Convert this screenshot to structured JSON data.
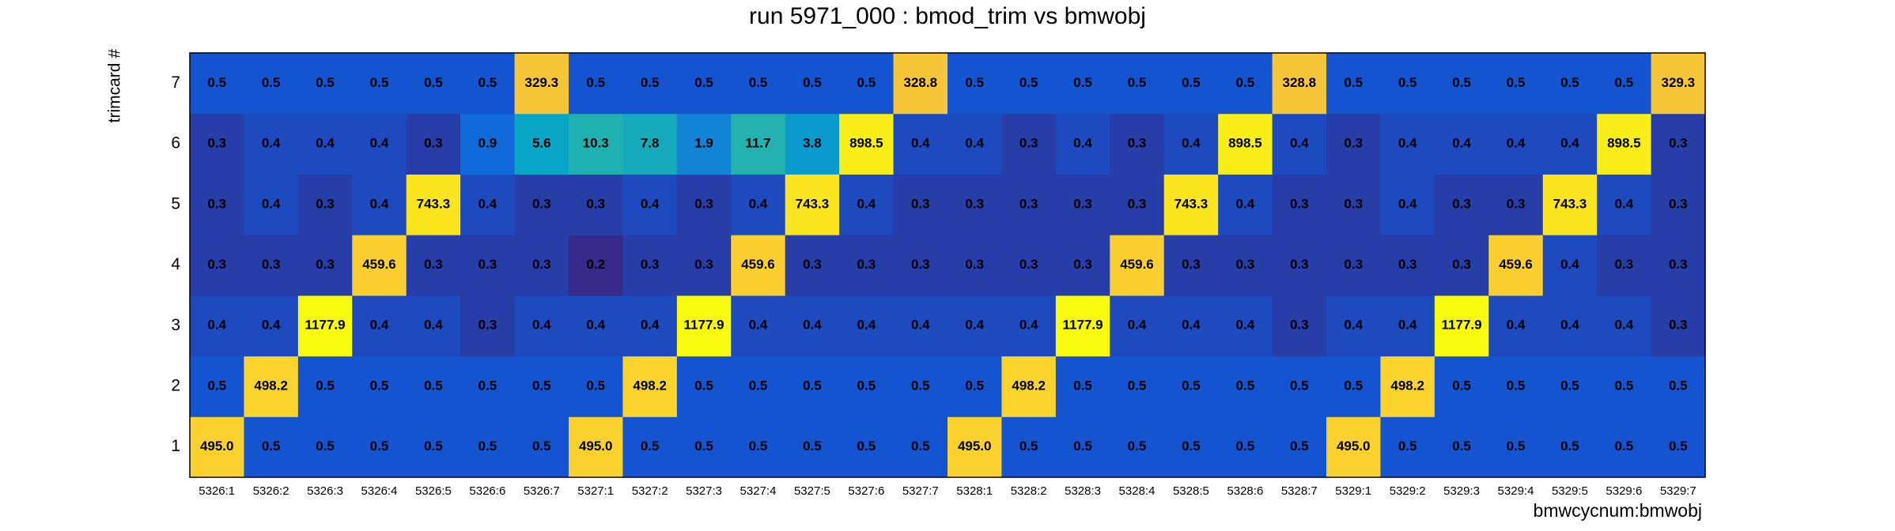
{
  "chart_data": {
    "type": "heatmap",
    "title": "run 5971_000 : bmod_trim vs bmwobj",
    "x_label": "bmwcycnum:bmwobj",
    "y_label": "trimcard #",
    "categories": [
      "5326:1",
      "5326:2",
      "5326:3",
      "5326:4",
      "5326:5",
      "5326:6",
      "5326:7",
      "5327:1",
      "5327:2",
      "5327:3",
      "5327:4",
      "5327:5",
      "5327:6",
      "5327:7",
      "5328:1",
      "5328:2",
      "5328:3",
      "5328:4",
      "5328:5",
      "5328:6",
      "5328:7",
      "5329:1",
      "5329:2",
      "5329:3",
      "5329:4",
      "5329:5",
      "5329:6",
      "5329:7"
    ],
    "y_categories": [
      "1",
      "2",
      "3",
      "4",
      "5",
      "6",
      "7"
    ],
    "z": [
      [
        495.0,
        0.5,
        0.5,
        0.5,
        0.5,
        0.5,
        0.5,
        495.0,
        0.5,
        0.5,
        0.5,
        0.5,
        0.5,
        0.5,
        495.0,
        0.5,
        0.5,
        0.5,
        0.5,
        0.5,
        0.5,
        495.0,
        0.5,
        0.5,
        0.5,
        0.5,
        0.5,
        0.5
      ],
      [
        0.5,
        498.2,
        0.5,
        0.5,
        0.5,
        0.5,
        0.5,
        0.5,
        498.2,
        0.5,
        0.5,
        0.5,
        0.5,
        0.5,
        0.5,
        498.2,
        0.5,
        0.5,
        0.5,
        0.5,
        0.5,
        0.5,
        498.2,
        0.5,
        0.5,
        0.5,
        0.5,
        0.5
      ],
      [
        0.4,
        0.4,
        1177.9,
        0.4,
        0.4,
        0.3,
        0.4,
        0.4,
        0.4,
        1177.9,
        0.4,
        0.4,
        0.4,
        0.4,
        0.4,
        0.4,
        1177.9,
        0.4,
        0.4,
        0.4,
        0.3,
        0.4,
        0.4,
        1177.9,
        0.4,
        0.4,
        0.4,
        0.3
      ],
      [
        0.3,
        0.3,
        0.3,
        459.6,
        0.3,
        0.3,
        0.3,
        0.2,
        0.3,
        0.3,
        459.6,
        0.3,
        0.3,
        0.3,
        0.3,
        0.3,
        0.3,
        459.6,
        0.3,
        0.3,
        0.3,
        0.3,
        0.3,
        0.3,
        459.6,
        0.4,
        0.3,
        0.3
      ],
      [
        0.3,
        0.4,
        0.3,
        0.4,
        743.3,
        0.4,
        0.3,
        0.3,
        0.4,
        0.3,
        0.4,
        743.3,
        0.4,
        0.3,
        0.3,
        0.3,
        0.3,
        0.3,
        743.3,
        0.4,
        0.3,
        0.3,
        0.4,
        0.3,
        0.3,
        743.3,
        0.4,
        0.3
      ],
      [
        0.3,
        0.4,
        0.4,
        0.4,
        0.3,
        0.9,
        5.6,
        10.3,
        7.8,
        1.9,
        11.7,
        3.8,
        898.5,
        0.4,
        0.4,
        0.3,
        0.4,
        0.3,
        0.4,
        898.5,
        0.4,
        0.3,
        0.4,
        0.4,
        0.4,
        0.4,
        898.5,
        0.3
      ],
      [
        0.5,
        0.5,
        0.5,
        0.5,
        0.5,
        0.5,
        329.3,
        0.5,
        0.5,
        0.5,
        0.5,
        0.5,
        0.5,
        328.8,
        0.5,
        0.5,
        0.5,
        0.5,
        0.5,
        0.5,
        328.8,
        0.5,
        0.5,
        0.5,
        0.5,
        0.5,
        0.5,
        329.3
      ]
    ],
    "z_labels": [
      [
        "495.0",
        "0.5",
        "0.5",
        "0.5",
        "0.5",
        "0.5",
        "0.5",
        "495.0",
        "0.5",
        "0.5",
        "0.5",
        "0.5",
        "0.5",
        "0.5",
        "495.0",
        "0.5",
        "0.5",
        "0.5",
        "0.5",
        "0.5",
        "0.5",
        "495.0",
        "0.5",
        "0.5",
        "0.5",
        "0.5",
        "0.5",
        "0.5"
      ],
      [
        "0.5",
        "498.2",
        "0.5",
        "0.5",
        "0.5",
        "0.5",
        "0.5",
        "0.5",
        "498.2",
        "0.5",
        "0.5",
        "0.5",
        "0.5",
        "0.5",
        "0.5",
        "498.2",
        "0.5",
        "0.5",
        "0.5",
        "0.5",
        "0.5",
        "0.5",
        "498.2",
        "0.5",
        "0.5",
        "0.5",
        "0.5",
        "0.5"
      ],
      [
        "0.4",
        "0.4",
        "1177.9",
        "0.4",
        "0.4",
        "0.3",
        "0.4",
        "0.4",
        "0.4",
        "1177.9",
        "0.4",
        "0.4",
        "0.4",
        "0.4",
        "0.4",
        "0.4",
        "1177.9",
        "0.4",
        "0.4",
        "0.4",
        "0.3",
        "0.4",
        "0.4",
        "1177.9",
        "0.4",
        "0.4",
        "0.4",
        "0.3"
      ],
      [
        "0.3",
        "0.3",
        "0.3",
        "459.6",
        "0.3",
        "0.3",
        "0.3",
        "0.2",
        "0.3",
        "0.3",
        "459.6",
        "0.3",
        "0.3",
        "0.3",
        "0.3",
        "0.3",
        "0.3",
        "459.6",
        "0.3",
        "0.3",
        "0.3",
        "0.3",
        "0.3",
        "0.3",
        "459.6",
        "0.4",
        "0.3",
        "0.3"
      ],
      [
        "0.3",
        "0.4",
        "0.3",
        "0.4",
        "743.3",
        "0.4",
        "0.3",
        "0.3",
        "0.4",
        "0.3",
        "0.4",
        "743.3",
        "0.4",
        "0.3",
        "0.3",
        "0.3",
        "0.3",
        "0.3",
        "743.3",
        "0.4",
        "0.3",
        "0.3",
        "0.4",
        "0.3",
        "0.3",
        "743.3",
        "0.4",
        "0.3"
      ],
      [
        "0.3",
        "0.4",
        "0.4",
        "0.4",
        "0.3",
        "0.9",
        "5.6",
        "10.3",
        "7.8",
        "1.9",
        "11.7",
        "3.8",
        "898.5",
        "0.4",
        "0.4",
        "0.3",
        "0.4",
        "0.3",
        "0.4",
        "898.5",
        "0.4",
        "0.3",
        "0.4",
        "0.4",
        "0.4",
        "0.4",
        "898.5",
        "0.3"
      ],
      [
        "0.5",
        "0.5",
        "0.5",
        "0.5",
        "0.5",
        "0.5",
        "329.3",
        "0.5",
        "0.5",
        "0.5",
        "0.5",
        "0.5",
        "0.5",
        "328.8",
        "0.5",
        "0.5",
        "0.5",
        "0.5",
        "0.5",
        "0.5",
        "328.8",
        "0.5",
        "0.5",
        "0.5",
        "0.5",
        "0.5",
        "0.5",
        "329.3"
      ]
    ],
    "zlog": true,
    "colormap": [
      "#352a87",
      "#0f5cdd",
      "#1481d6",
      "#06a4ca",
      "#2eb7a4",
      "#87bf77",
      "#e0b848",
      "#fcc835",
      "#f9fb0e"
    ]
  }
}
